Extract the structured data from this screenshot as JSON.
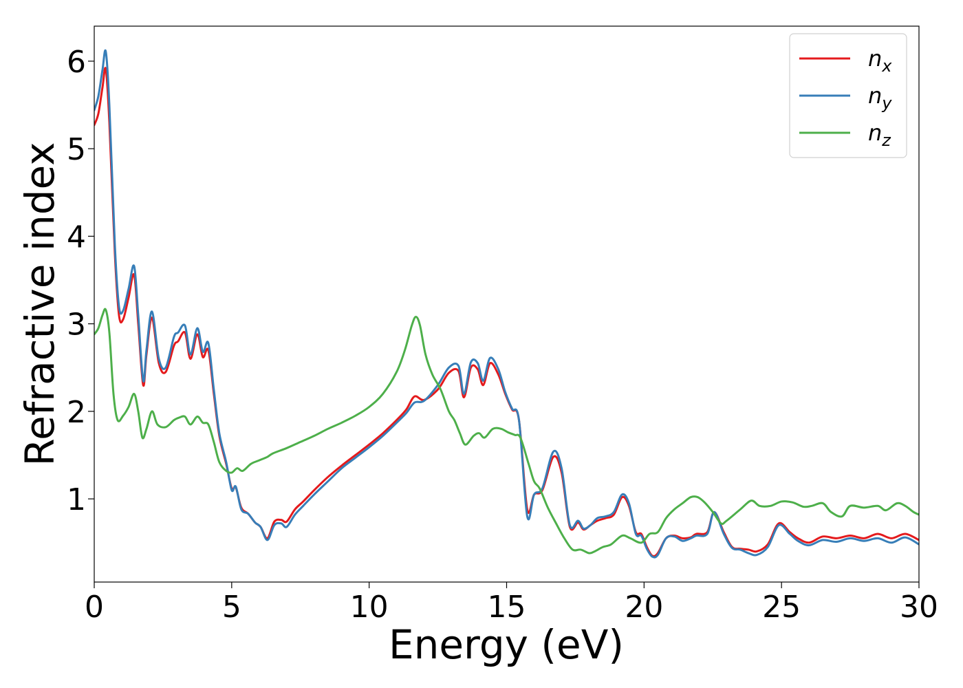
{
  "chart_data": {
    "type": "line",
    "title": "",
    "xlabel": "Energy (eV)",
    "ylabel": "Refractive index",
    "xlim": [
      0,
      30
    ],
    "ylim": [
      0.05,
      6.4
    ],
    "xticks": [
      0,
      5,
      10,
      15,
      20,
      25,
      30
    ],
    "yticks": [
      1,
      2,
      3,
      4,
      5,
      6
    ],
    "grid": false,
    "legend_position": "top-right",
    "series": [
      {
        "name": "n",
        "subscript": "x",
        "color": "#e41a1c",
        "x": [
          0,
          0.15,
          0.3,
          0.42,
          0.55,
          0.75,
          0.9,
          1.05,
          1.25,
          1.45,
          1.6,
          1.78,
          1.9,
          2.1,
          2.35,
          2.6,
          2.9,
          3.05,
          3.3,
          3.5,
          3.75,
          3.95,
          4.15,
          4.35,
          4.55,
          4.8,
          5.0,
          5.15,
          5.35,
          5.6,
          5.85,
          6.05,
          6.3,
          6.55,
          6.8,
          7.0,
          7.3,
          7.6,
          8.0,
          8.5,
          9.0,
          9.5,
          10.0,
          10.5,
          11.0,
          11.35,
          11.65,
          12.0,
          12.5,
          12.9,
          13.25,
          13.45,
          13.7,
          13.95,
          14.15,
          14.4,
          14.7,
          14.95,
          15.2,
          15.45,
          15.75,
          16.0,
          16.3,
          16.7,
          17.0,
          17.3,
          17.6,
          17.8,
          18.05,
          18.3,
          18.6,
          18.9,
          19.2,
          19.45,
          19.7,
          19.9,
          20.1,
          20.3,
          20.5,
          20.8,
          21.1,
          21.4,
          21.7,
          21.9,
          22.3,
          22.55,
          22.9,
          23.2,
          23.5,
          23.8,
          24.1,
          24.5,
          24.9,
          25.3,
          25.6,
          26.0,
          26.5,
          27.0,
          27.5,
          28.0,
          28.5,
          29.0,
          29.5,
          30.0
        ],
        "y": [
          5.27,
          5.4,
          5.7,
          5.91,
          5.3,
          3.8,
          3.1,
          3.05,
          3.3,
          3.56,
          3.0,
          2.3,
          2.65,
          3.07,
          2.55,
          2.45,
          2.75,
          2.8,
          2.9,
          2.6,
          2.88,
          2.62,
          2.7,
          2.2,
          1.72,
          1.4,
          1.12,
          1.13,
          0.9,
          0.83,
          0.73,
          0.68,
          0.55,
          0.74,
          0.76,
          0.74,
          0.88,
          0.97,
          1.1,
          1.25,
          1.38,
          1.5,
          1.62,
          1.75,
          1.9,
          2.02,
          2.17,
          2.13,
          2.25,
          2.44,
          2.46,
          2.16,
          2.5,
          2.48,
          2.3,
          2.55,
          2.42,
          2.2,
          2.02,
          1.9,
          0.88,
          1.05,
          1.1,
          1.48,
          1.3,
          0.68,
          0.73,
          0.65,
          0.7,
          0.75,
          0.78,
          0.82,
          1.02,
          0.92,
          0.62,
          0.6,
          0.45,
          0.35,
          0.38,
          0.55,
          0.58,
          0.55,
          0.56,
          0.6,
          0.62,
          0.85,
          0.62,
          0.45,
          0.43,
          0.42,
          0.4,
          0.48,
          0.72,
          0.62,
          0.55,
          0.5,
          0.57,
          0.55,
          0.58,
          0.55,
          0.6,
          0.55,
          0.6,
          0.53
        ]
      },
      {
        "name": "n",
        "subscript": "y",
        "color": "#377eb8",
        "x": [
          0,
          0.15,
          0.3,
          0.42,
          0.55,
          0.75,
          0.9,
          1.05,
          1.25,
          1.45,
          1.6,
          1.78,
          1.9,
          2.1,
          2.35,
          2.6,
          2.9,
          3.05,
          3.3,
          3.5,
          3.75,
          3.95,
          4.15,
          4.35,
          4.55,
          4.8,
          5.0,
          5.15,
          5.35,
          5.6,
          5.85,
          6.05,
          6.3,
          6.55,
          6.8,
          7.0,
          7.3,
          7.6,
          8.0,
          8.5,
          9.0,
          9.5,
          10.0,
          10.5,
          11.0,
          11.35,
          11.65,
          12.0,
          12.5,
          12.9,
          13.25,
          13.45,
          13.7,
          13.95,
          14.15,
          14.4,
          14.7,
          14.95,
          15.2,
          15.45,
          15.75,
          16.0,
          16.3,
          16.7,
          17.0,
          17.3,
          17.6,
          17.8,
          18.05,
          18.3,
          18.6,
          18.9,
          19.2,
          19.45,
          19.7,
          19.9,
          20.1,
          20.3,
          20.5,
          20.8,
          21.1,
          21.4,
          21.7,
          21.9,
          22.3,
          22.55,
          22.9,
          23.2,
          23.5,
          23.8,
          24.1,
          24.5,
          24.9,
          25.3,
          25.6,
          26.0,
          26.5,
          27.0,
          27.5,
          28.0,
          28.5,
          29.0,
          29.5,
          30.0
        ],
        "y": [
          5.44,
          5.6,
          5.9,
          6.11,
          5.5,
          3.9,
          3.2,
          3.15,
          3.4,
          3.66,
          3.1,
          2.35,
          2.7,
          3.14,
          2.6,
          2.5,
          2.85,
          2.9,
          2.98,
          2.65,
          2.95,
          2.68,
          2.78,
          2.25,
          1.75,
          1.42,
          1.1,
          1.14,
          0.88,
          0.83,
          0.73,
          0.68,
          0.53,
          0.7,
          0.72,
          0.68,
          0.82,
          0.92,
          1.05,
          1.2,
          1.35,
          1.47,
          1.59,
          1.72,
          1.87,
          1.98,
          2.1,
          2.12,
          2.3,
          2.5,
          2.52,
          2.2,
          2.56,
          2.55,
          2.35,
          2.61,
          2.48,
          2.22,
          2.03,
          1.9,
          0.8,
          1.05,
          1.12,
          1.54,
          1.35,
          0.7,
          0.75,
          0.66,
          0.7,
          0.78,
          0.8,
          0.85,
          1.05,
          0.95,
          0.6,
          0.58,
          0.43,
          0.34,
          0.36,
          0.55,
          0.57,
          0.52,
          0.55,
          0.58,
          0.6,
          0.85,
          0.6,
          0.44,
          0.42,
          0.38,
          0.36,
          0.45,
          0.7,
          0.6,
          0.52,
          0.47,
          0.53,
          0.51,
          0.55,
          0.52,
          0.55,
          0.5,
          0.56,
          0.48
        ]
      },
      {
        "name": "n",
        "subscript": "z",
        "color": "#4daf4a",
        "x": [
          0,
          0.15,
          0.3,
          0.42,
          0.55,
          0.7,
          0.85,
          1.05,
          1.25,
          1.45,
          1.6,
          1.75,
          1.9,
          2.1,
          2.3,
          2.6,
          2.9,
          3.1,
          3.3,
          3.5,
          3.75,
          3.95,
          4.15,
          4.35,
          4.55,
          4.8,
          5.0,
          5.2,
          5.4,
          5.7,
          6.0,
          6.3,
          6.5,
          7.0,
          7.5,
          8.0,
          8.5,
          9.0,
          9.5,
          10.0,
          10.5,
          11.0,
          11.3,
          11.55,
          11.7,
          11.85,
          12.05,
          12.3,
          12.6,
          12.9,
          13.1,
          13.3,
          13.5,
          13.8,
          14.0,
          14.2,
          14.5,
          14.8,
          15.05,
          15.3,
          15.5,
          15.8,
          16.0,
          16.2,
          16.5,
          16.8,
          17.1,
          17.4,
          17.7,
          18.0,
          18.2,
          18.5,
          18.8,
          19.2,
          19.5,
          19.9,
          20.2,
          20.5,
          20.8,
          21.1,
          21.4,
          21.7,
          21.95,
          22.2,
          22.5,
          22.8,
          23.0,
          23.5,
          23.9,
          24.2,
          24.6,
          25.0,
          25.4,
          25.8,
          26.1,
          26.5,
          26.8,
          27.2,
          27.5,
          28.0,
          28.5,
          28.8,
          29.2,
          29.5,
          29.8,
          30.0
        ],
        "y": [
          2.88,
          2.95,
          3.1,
          3.16,
          2.9,
          2.2,
          1.9,
          1.95,
          2.05,
          2.2,
          2.0,
          1.7,
          1.8,
          2.0,
          1.85,
          1.82,
          1.9,
          1.93,
          1.94,
          1.85,
          1.94,
          1.87,
          1.85,
          1.65,
          1.42,
          1.32,
          1.3,
          1.35,
          1.32,
          1.4,
          1.44,
          1.48,
          1.52,
          1.58,
          1.65,
          1.72,
          1.8,
          1.87,
          1.95,
          2.05,
          2.2,
          2.45,
          2.7,
          2.98,
          3.08,
          2.98,
          2.65,
          2.42,
          2.25,
          2.0,
          1.9,
          1.75,
          1.62,
          1.72,
          1.75,
          1.7,
          1.8,
          1.8,
          1.76,
          1.73,
          1.7,
          1.4,
          1.2,
          1.12,
          0.9,
          0.72,
          0.55,
          0.42,
          0.42,
          0.38,
          0.4,
          0.45,
          0.48,
          0.58,
          0.55,
          0.5,
          0.6,
          0.62,
          0.78,
          0.88,
          0.95,
          1.02,
          1.02,
          0.96,
          0.85,
          0.72,
          0.75,
          0.88,
          0.98,
          0.92,
          0.92,
          0.97,
          0.96,
          0.91,
          0.92,
          0.95,
          0.85,
          0.8,
          0.92,
          0.9,
          0.92,
          0.87,
          0.95,
          0.92,
          0.85,
          0.82
        ]
      }
    ]
  }
}
